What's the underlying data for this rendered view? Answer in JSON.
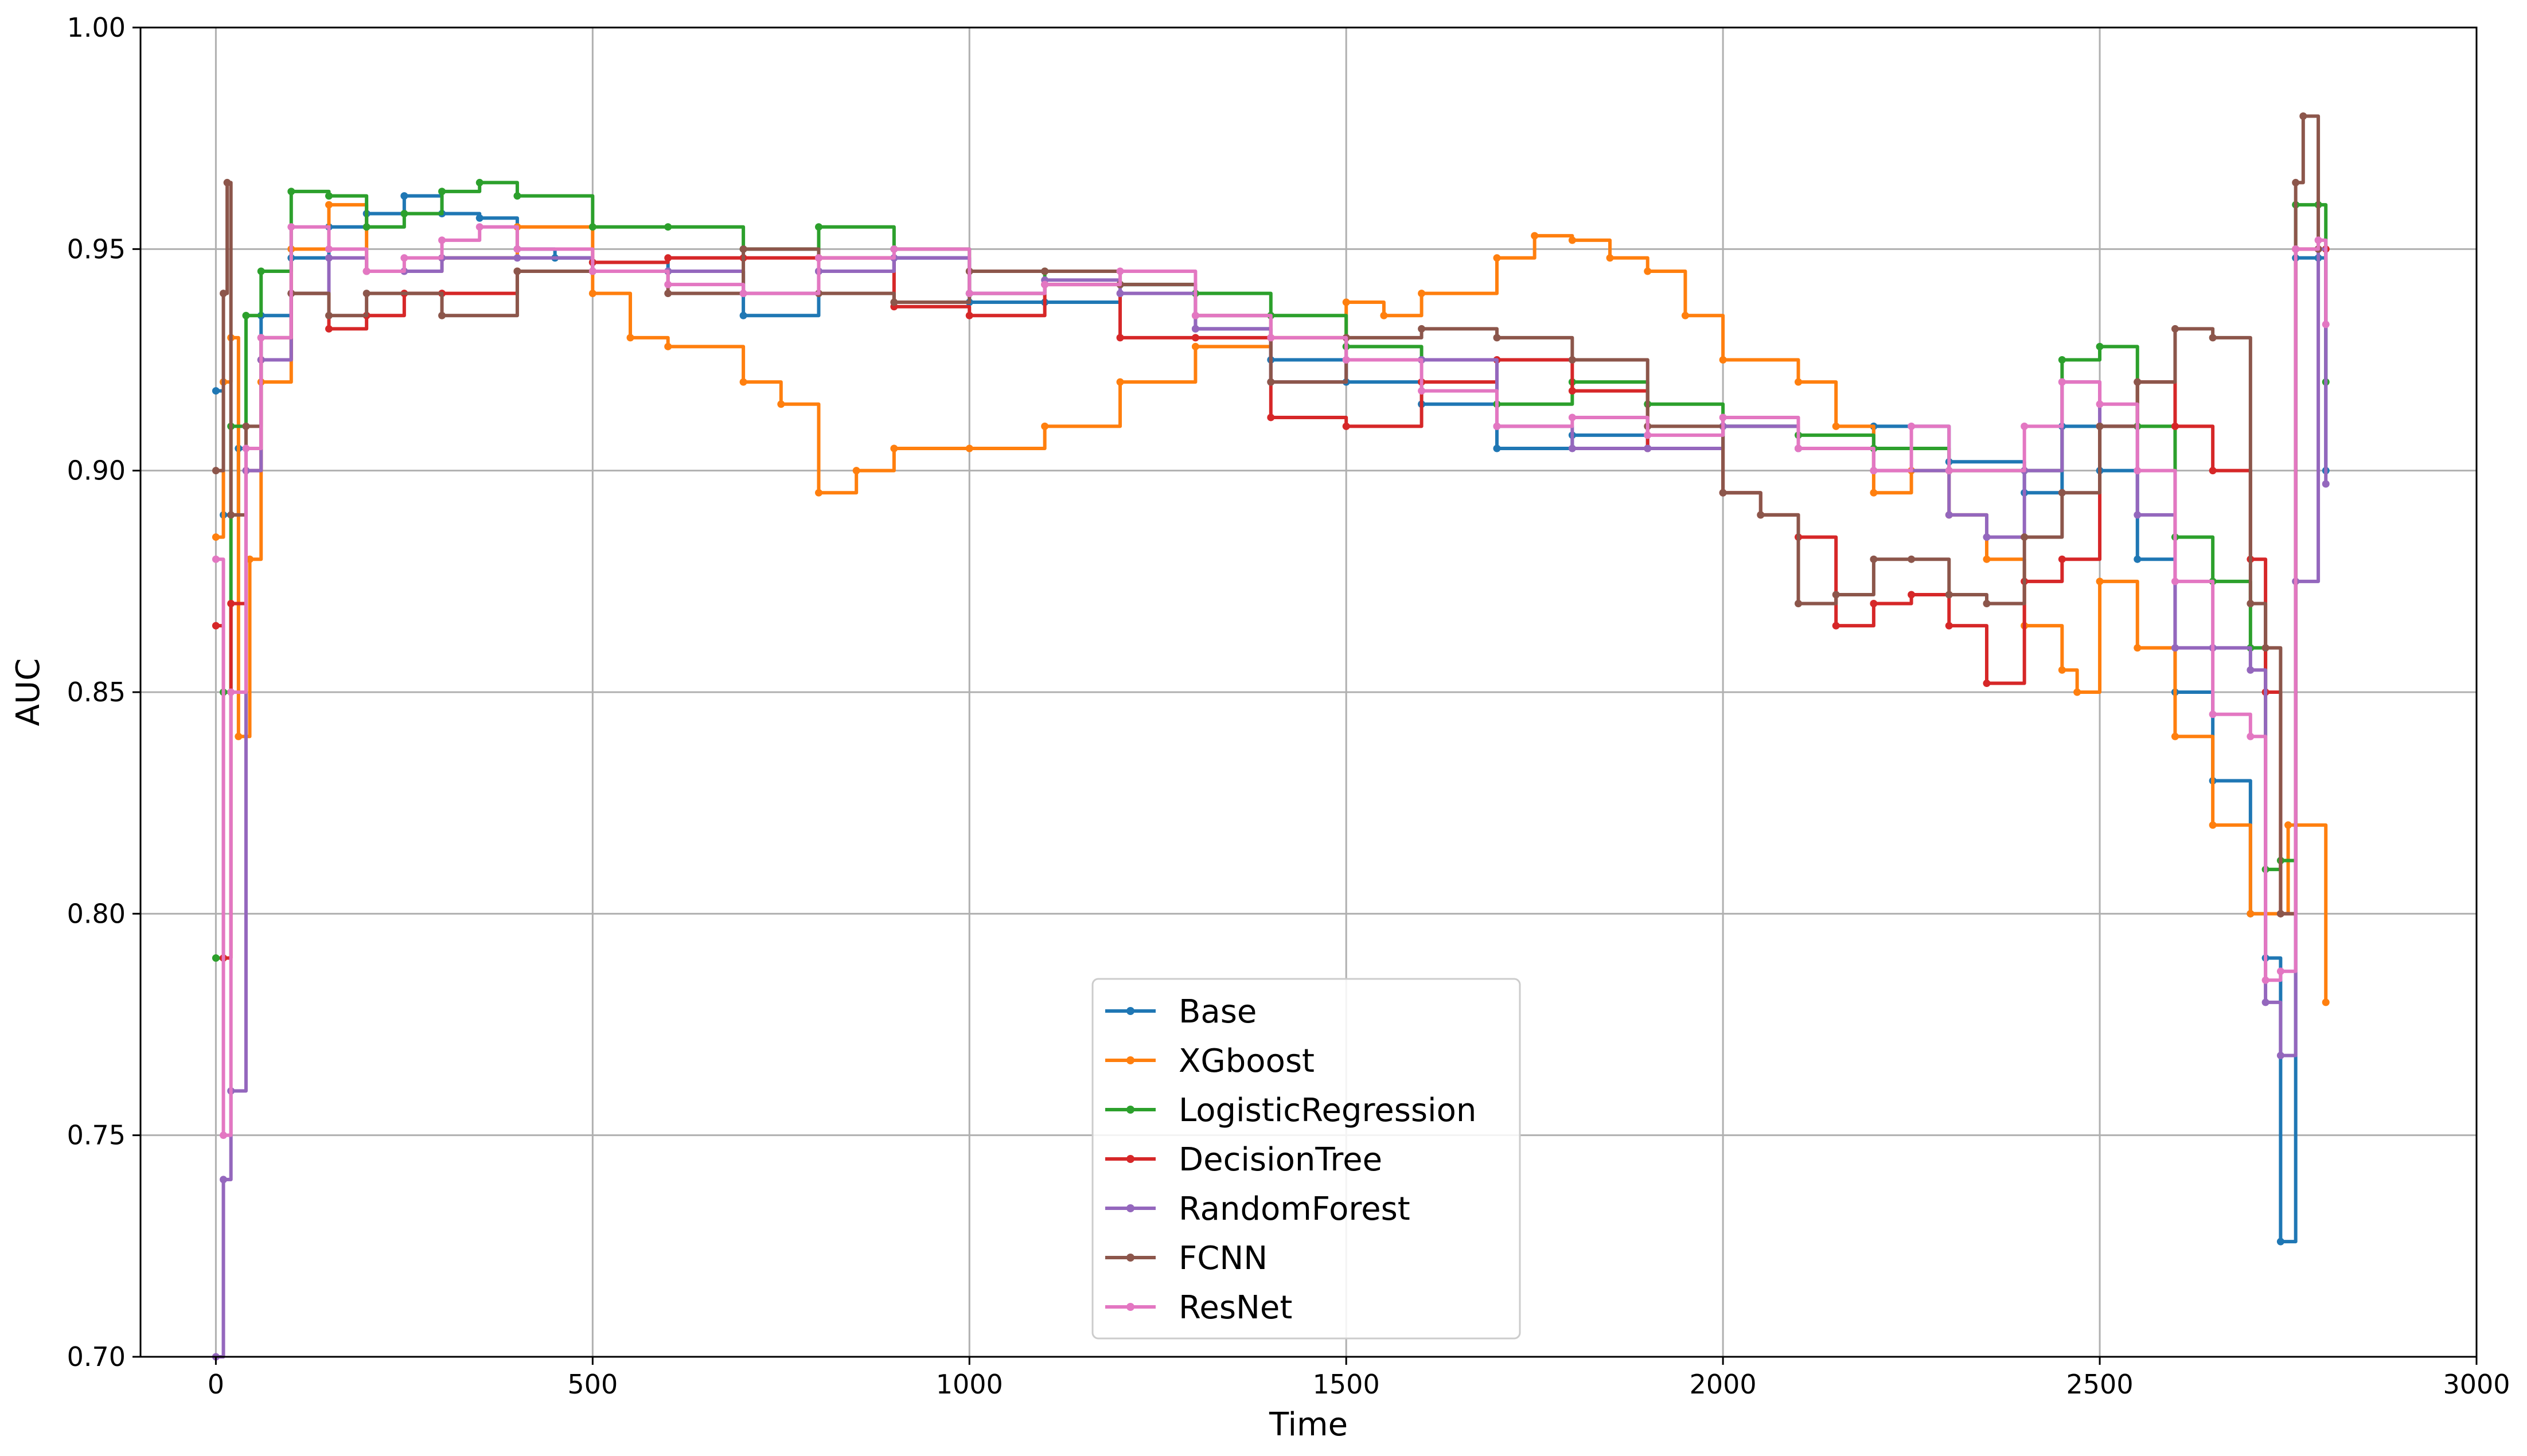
{
  "chart_data": {
    "type": "line",
    "title": "",
    "xlabel": "Time",
    "ylabel": "AUC",
    "xlim": [
      -100,
      3000
    ],
    "ylim": [
      0.7,
      1.0
    ],
    "xticks": [
      0,
      500,
      1000,
      1500,
      2000,
      2500,
      3000
    ],
    "yticks": [
      0.7,
      0.75,
      0.8,
      0.85,
      0.9,
      0.95,
      1.0
    ],
    "xtick_labels": [
      "0",
      "500",
      "1000",
      "1500",
      "2000",
      "2500",
      "3000"
    ],
    "ytick_labels": [
      "0.70",
      "0.75",
      "0.80",
      "0.85",
      "0.90",
      "0.95",
      "1.00"
    ],
    "grid": true,
    "legend_position": "lower-center",
    "series": [
      {
        "name": "Base",
        "color": "#1f77b4",
        "x": [
          0,
          10,
          30,
          60,
          100,
          150,
          200,
          250,
          300,
          350,
          400,
          450,
          500,
          600,
          700,
          800,
          900,
          1000,
          1100,
          1200,
          1300,
          1400,
          1500,
          1600,
          1700,
          1800,
          1900,
          2000,
          2100,
          2200,
          2300,
          2400,
          2450,
          2500,
          2550,
          2600,
          2650,
          2700,
          2720,
          2740,
          2760,
          2790,
          2800
        ],
        "y": [
          0.918,
          0.89,
          0.905,
          0.935,
          0.948,
          0.955,
          0.958,
          0.962,
          0.958,
          0.957,
          0.95,
          0.948,
          0.947,
          0.945,
          0.935,
          0.945,
          0.948,
          0.938,
          0.938,
          0.942,
          0.932,
          0.925,
          0.92,
          0.915,
          0.905,
          0.908,
          0.905,
          0.91,
          0.905,
          0.91,
          0.902,
          0.895,
          0.91,
          0.9,
          0.88,
          0.85,
          0.83,
          0.8,
          0.79,
          0.726,
          0.948,
          0.948,
          0.9
        ]
      },
      {
        "name": "XGboost",
        "color": "#ff7f0e",
        "x": [
          0,
          10,
          20,
          30,
          45,
          60,
          100,
          150,
          200,
          300,
          400,
          500,
          550,
          600,
          700,
          750,
          800,
          850,
          900,
          1000,
          1100,
          1200,
          1300,
          1400,
          1500,
          1550,
          1600,
          1700,
          1750,
          1800,
          1850,
          1900,
          1950,
          2000,
          2100,
          2150,
          2200,
          2250,
          2300,
          2350,
          2400,
          2450,
          2470,
          2500,
          2550,
          2600,
          2650,
          2700,
          2750,
          2800
        ],
        "y": [
          0.885,
          0.92,
          0.93,
          0.84,
          0.88,
          0.92,
          0.95,
          0.96,
          0.945,
          0.948,
          0.955,
          0.94,
          0.93,
          0.928,
          0.92,
          0.915,
          0.895,
          0.9,
          0.905,
          0.905,
          0.91,
          0.92,
          0.928,
          0.93,
          0.938,
          0.935,
          0.94,
          0.948,
          0.953,
          0.952,
          0.948,
          0.945,
          0.935,
          0.925,
          0.92,
          0.91,
          0.895,
          0.9,
          0.89,
          0.88,
          0.865,
          0.855,
          0.85,
          0.875,
          0.86,
          0.84,
          0.82,
          0.8,
          0.82,
          0.78
        ]
      },
      {
        "name": "LogisticRegression",
        "color": "#2ca02c",
        "x": [
          0,
          10,
          20,
          40,
          60,
          100,
          150,
          200,
          250,
          300,
          350,
          400,
          500,
          600,
          700,
          800,
          900,
          1000,
          1100,
          1200,
          1300,
          1400,
          1500,
          1600,
          1700,
          1800,
          1900,
          2000,
          2100,
          2200,
          2300,
          2400,
          2450,
          2500,
          2550,
          2600,
          2650,
          2700,
          2720,
          2740,
          2760,
          2790,
          2800
        ],
        "y": [
          0.79,
          0.85,
          0.91,
          0.935,
          0.945,
          0.963,
          0.962,
          0.955,
          0.958,
          0.963,
          0.965,
          0.962,
          0.955,
          0.955,
          0.95,
          0.955,
          0.95,
          0.94,
          0.945,
          0.942,
          0.94,
          0.935,
          0.928,
          0.925,
          0.915,
          0.92,
          0.915,
          0.91,
          0.908,
          0.905,
          0.9,
          0.9,
          0.925,
          0.928,
          0.91,
          0.885,
          0.875,
          0.86,
          0.81,
          0.812,
          0.96,
          0.96,
          0.92
        ]
      },
      {
        "name": "DecisionTree",
        "color": "#d62728",
        "x": [
          0,
          10,
          20,
          40,
          60,
          100,
          150,
          200,
          250,
          300,
          400,
          500,
          600,
          700,
          800,
          900,
          1000,
          1100,
          1200,
          1300,
          1400,
          1500,
          1600,
          1700,
          1800,
          1900,
          2000,
          2050,
          2100,
          2150,
          2200,
          2250,
          2300,
          2350,
          2400,
          2450,
          2500,
          2550,
          2600,
          2650,
          2700,
          2720,
          2740,
          2760,
          2790,
          2800
        ],
        "y": [
          0.865,
          0.79,
          0.87,
          0.9,
          0.925,
          0.94,
          0.932,
          0.935,
          0.94,
          0.94,
          0.945,
          0.947,
          0.948,
          0.948,
          0.948,
          0.937,
          0.935,
          0.942,
          0.93,
          0.93,
          0.912,
          0.91,
          0.92,
          0.925,
          0.918,
          0.905,
          0.895,
          0.89,
          0.885,
          0.865,
          0.87,
          0.872,
          0.865,
          0.852,
          0.875,
          0.88,
          0.91,
          0.92,
          0.91,
          0.9,
          0.88,
          0.85,
          0.8,
          0.95,
          0.95,
          0.95
        ]
      },
      {
        "name": "RandomForest",
        "color": "#9467bd",
        "x": [
          0,
          10,
          20,
          40,
          60,
          100,
          150,
          200,
          250,
          300,
          400,
          500,
          600,
          700,
          800,
          900,
          1000,
          1100,
          1200,
          1300,
          1400,
          1500,
          1600,
          1700,
          1800,
          1900,
          2000,
          2100,
          2200,
          2300,
          2350,
          2400,
          2450,
          2500,
          2550,
          2600,
          2650,
          2700,
          2720,
          2740,
          2760,
          2790,
          2800
        ],
        "y": [
          0.7,
          0.74,
          0.76,
          0.9,
          0.925,
          0.94,
          0.948,
          0.945,
          0.945,
          0.948,
          0.948,
          0.945,
          0.945,
          0.94,
          0.945,
          0.948,
          0.94,
          0.943,
          0.94,
          0.932,
          0.92,
          0.925,
          0.925,
          0.91,
          0.905,
          0.905,
          0.91,
          0.905,
          0.9,
          0.89,
          0.885,
          0.9,
          0.92,
          0.91,
          0.89,
          0.86,
          0.86,
          0.855,
          0.78,
          0.768,
          0.875,
          0.95,
          0.897
        ]
      },
      {
        "name": "FCNN",
        "color": "#8c564b",
        "x": [
          0,
          10,
          15,
          20,
          40,
          60,
          100,
          150,
          200,
          300,
          400,
          500,
          600,
          700,
          800,
          900,
          1000,
          1100,
          1200,
          1300,
          1400,
          1500,
          1600,
          1700,
          1800,
          1900,
          2000,
          2050,
          2100,
          2150,
          2200,
          2250,
          2300,
          2350,
          2400,
          2450,
          2500,
          2550,
          2600,
          2650,
          2700,
          2720,
          2740,
          2760,
          2770,
          2790
        ],
        "y": [
          0.9,
          0.94,
          0.965,
          0.89,
          0.91,
          0.93,
          0.94,
          0.935,
          0.94,
          0.935,
          0.945,
          0.945,
          0.94,
          0.95,
          0.94,
          0.938,
          0.945,
          0.945,
          0.942,
          0.935,
          0.92,
          0.93,
          0.932,
          0.93,
          0.925,
          0.91,
          0.895,
          0.89,
          0.87,
          0.872,
          0.88,
          0.88,
          0.872,
          0.87,
          0.885,
          0.895,
          0.91,
          0.92,
          0.932,
          0.93,
          0.87,
          0.86,
          0.8,
          0.965,
          0.98,
          0.95
        ]
      },
      {
        "name": "ResNet",
        "color": "#e377c2",
        "x": [
          0,
          10,
          20,
          40,
          60,
          100,
          150,
          200,
          250,
          300,
          350,
          400,
          500,
          600,
          700,
          800,
          900,
          1000,
          1100,
          1200,
          1300,
          1400,
          1500,
          1600,
          1700,
          1800,
          1900,
          2000,
          2100,
          2200,
          2250,
          2300,
          2400,
          2450,
          2500,
          2550,
          2600,
          2650,
          2700,
          2720,
          2740,
          2760,
          2790,
          2800
        ],
        "y": [
          0.88,
          0.75,
          0.85,
          0.905,
          0.93,
          0.955,
          0.95,
          0.945,
          0.948,
          0.952,
          0.955,
          0.95,
          0.945,
          0.942,
          0.94,
          0.948,
          0.95,
          0.94,
          0.942,
          0.945,
          0.935,
          0.93,
          0.925,
          0.918,
          0.91,
          0.912,
          0.908,
          0.912,
          0.905,
          0.9,
          0.91,
          0.9,
          0.91,
          0.92,
          0.915,
          0.9,
          0.875,
          0.845,
          0.84,
          0.785,
          0.787,
          0.95,
          0.952,
          0.933
        ]
      }
    ]
  }
}
